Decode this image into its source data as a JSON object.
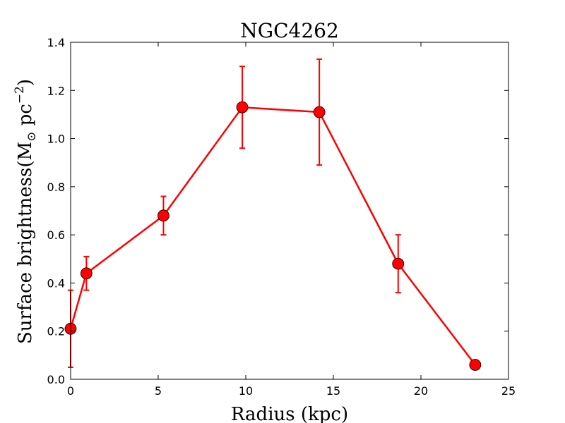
{
  "chart_data": {
    "type": "line",
    "title": "NGC4262",
    "xlabel": "Radius (kpc)",
    "ylabel": {
      "prefix": "Surface brightness(M",
      "subscript": "⊙",
      "middle": " pc",
      "superscript": "−2",
      "suffix": ")"
    },
    "xlim": [
      0,
      25
    ],
    "ylim": [
      0.0,
      1.4
    ],
    "xticks": [
      0,
      5,
      10,
      15,
      20,
      25
    ],
    "yticks": [
      0.0,
      0.2,
      0.4,
      0.6,
      0.8,
      1.0,
      1.2,
      1.4
    ],
    "xtick_labels": [
      "0",
      "5",
      "10",
      "15",
      "20",
      "25"
    ],
    "ytick_labels": [
      "0.0",
      "0.2",
      "0.4",
      "0.6",
      "0.8",
      "1.0",
      "1.2",
      "1.4"
    ],
    "grid": false,
    "series": [
      {
        "color": "#ff0000",
        "marker": "circle",
        "x": [
          0.0,
          0.9,
          5.3,
          9.8,
          14.2,
          18.7,
          23.1
        ],
        "y": [
          0.21,
          0.44,
          0.68,
          1.13,
          1.11,
          0.48,
          0.06
        ],
        "yerr": [
          0.16,
          0.07,
          0.08,
          0.17,
          0.22,
          0.12,
          0.0
        ]
      }
    ]
  }
}
